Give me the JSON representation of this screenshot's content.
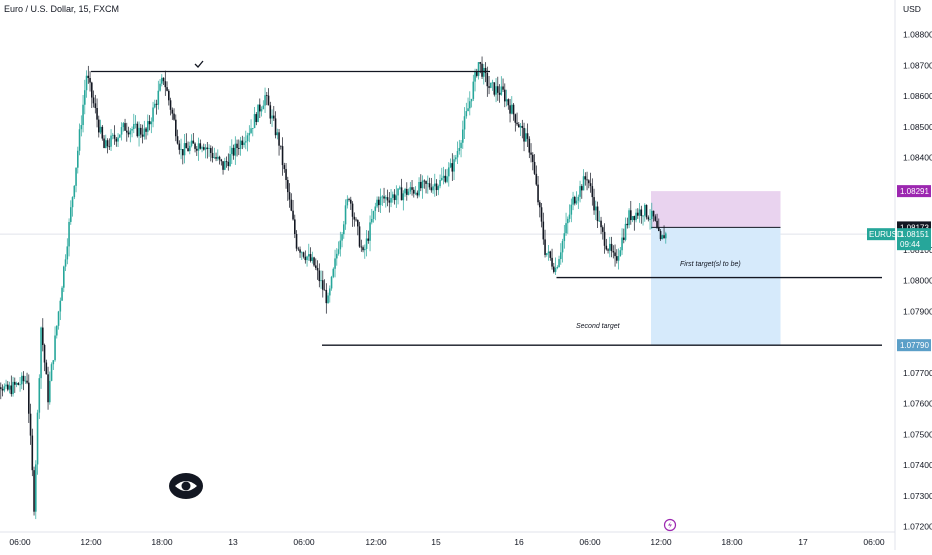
{
  "header": {
    "symbol_title": "Euro / U.S. Dollar, 15, FXCM"
  },
  "axis": {
    "currency": "USD"
  },
  "chart_data": {
    "type": "candlestick",
    "title": "Euro / U.S. Dollar, 15, FXCM",
    "ylabel": "USD",
    "ylim": [
      1.0715,
      1.0888
    ],
    "y_ticks": [
      "1.08800",
      "1.08700",
      "1.08600",
      "1.08500",
      "1.08400",
      "1.08100",
      "1.08000",
      "1.07900",
      "1.07700",
      "1.07600",
      "1.07500",
      "1.07400",
      "1.07300",
      "1.07200"
    ],
    "x_ticks": [
      "06:00",
      "12:00",
      "18:00",
      "13",
      "06:00",
      "12:00",
      "15",
      "16",
      "06:00",
      "12:00",
      "18:00",
      "17",
      "06:00"
    ],
    "price_tags": {
      "target_top": "1.08291",
      "entry": "1.08173",
      "symbol": "EURUSD",
      "last": "1.08151",
      "countdown": "09:44",
      "target_bottom": "1.07790"
    },
    "levels": [
      {
        "price": 1.0868,
        "from_hour": 15.0,
        "to_hour": 72.0
      },
      {
        "price": 1.0801,
        "from_hour": 81.5,
        "to_hour": 128.0
      },
      {
        "price": 1.0779,
        "from_hour": 48.0,
        "to_hour": 128.0
      }
    ],
    "annotations": {
      "first_target": "First target(sl to be)",
      "second_target": "Second target"
    },
    "position": {
      "from_hour": 95.0,
      "to_hour": 113.5,
      "stop": 1.08291,
      "entry": 1.08173,
      "target": 1.0779,
      "stop_color": "#e9d3ef",
      "target_color": "#d6eafb"
    },
    "key_prices": [
      [
        0,
        1.0774
      ],
      [
        3,
        1.0764
      ],
      [
        6,
        1.0768
      ],
      [
        7,
        1.0727
      ],
      [
        8,
        1.0785
      ],
      [
        9,
        1.0762
      ],
      [
        12,
        1.0818
      ],
      [
        14.5,
        1.0867
      ],
      [
        17,
        1.0843
      ],
      [
        20,
        1.085
      ],
      [
        23,
        1.0848
      ],
      [
        25.5,
        1.0866
      ],
      [
        28,
        1.0842
      ],
      [
        31,
        1.0845
      ],
      [
        34,
        1.0837
      ],
      [
        38,
        1.085
      ],
      [
        40,
        1.086
      ],
      [
        42,
        1.0845
      ],
      [
        44.5,
        1.0812
      ],
      [
        47,
        1.0805
      ],
      [
        49,
        1.0793
      ],
      [
        50.5,
        1.0812
      ],
      [
        52,
        1.0828
      ],
      [
        54,
        1.0808
      ],
      [
        56,
        1.0826
      ],
      [
        59,
        1.0828
      ],
      [
        62,
        1.083
      ],
      [
        65,
        1.0832
      ],
      [
        67,
        1.0838
      ],
      [
        69,
        1.0856
      ],
      [
        70.5,
        1.0871
      ],
      [
        72,
        1.0863
      ],
      [
        74,
        1.0861
      ],
      [
        76,
        1.0852
      ],
      [
        78,
        1.0842
      ],
      [
        80,
        1.081
      ],
      [
        81.5,
        1.0804
      ],
      [
        84,
        1.0826
      ],
      [
        86,
        1.0834
      ],
      [
        88,
        1.0816
      ],
      [
        90,
        1.0806
      ],
      [
        92,
        1.0821
      ],
      [
        94,
        1.0823
      ],
      [
        95.5,
        1.082
      ],
      [
        96.5,
        1.0812
      ],
      [
        97,
        1.0815
      ]
    ],
    "colors": {
      "up": "#26a69a",
      "down": "#131722",
      "entry_tag": "#131722",
      "last_tag": "#26a69a",
      "target_top_tag": "#9c27b0",
      "target_bottom_tag": "#5b9fc8"
    }
  }
}
